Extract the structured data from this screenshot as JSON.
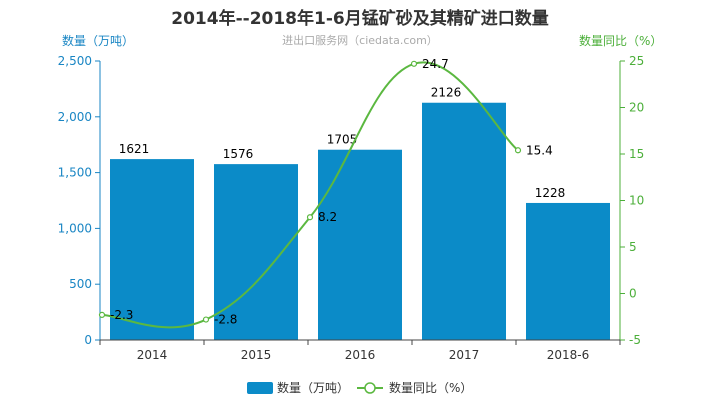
{
  "title": "2014年--2018年1-6月锰矿砂及其精矿进口数量",
  "subtitle": "进出口服务网（ciedata.com）",
  "colors": {
    "bar": "#0b8bc8",
    "line": "#5bb840",
    "left_axis": "#1a86c4",
    "right_axis": "#4caf3a"
  },
  "chart_data": {
    "type": "bar",
    "categories": [
      "2014",
      "2015",
      "2016",
      "2017",
      "2018-6"
    ],
    "series": [
      {
        "name": "数量（万吨）",
        "type": "bar",
        "axis": "left",
        "values": [
          1621,
          1576,
          1705,
          2126,
          1228
        ]
      },
      {
        "name": "数量同比（%）",
        "type": "line",
        "axis": "right",
        "values": [
          -2.3,
          -2.8,
          8.2,
          24.7,
          15.4
        ]
      }
    ],
    "ylabel": "数量（万吨）",
    "ylabel_right": "数量同比（%）",
    "ylim": [
      0,
      2500
    ],
    "ylim_right": [
      -5,
      25
    ],
    "yticks": [
      0,
      500,
      1000,
      1500,
      2000,
      2500
    ],
    "yticks_labels": [
      "0",
      "500",
      "1,000",
      "1,500",
      "2,000",
      "2,500"
    ],
    "yticks_right": [
      -5,
      0,
      5,
      10,
      15,
      20,
      25
    ],
    "legend": "bottom",
    "grid": false
  }
}
